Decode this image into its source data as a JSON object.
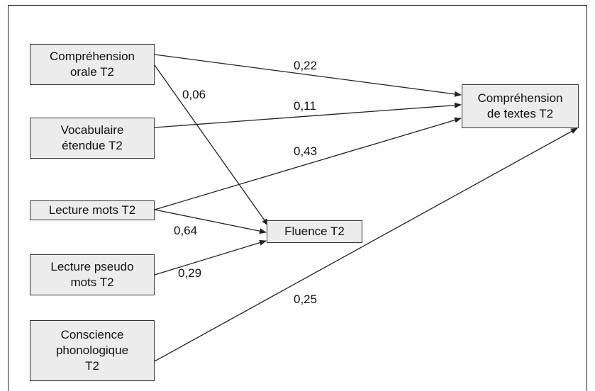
{
  "nodes": {
    "comprehension_orale": "Compréhension\norale T2",
    "vocabulaire": "Vocabulaire\nétendue T2",
    "lecture_mots": "Lecture mots T2",
    "lecture_pseudo": "Lecture pseudo\nmots T2",
    "conscience": "Conscience\nphonologique\nT2",
    "fluence": "Fluence T2",
    "comprehension_textes": "Compréhension\nde textes T2"
  },
  "paths": [
    {
      "from": "comprehension_orale",
      "to": "comprehension_textes",
      "coef": "0,22"
    },
    {
      "from": "comprehension_orale",
      "to": "fluence",
      "coef": "0,06"
    },
    {
      "from": "vocabulaire",
      "to": "comprehension_textes",
      "coef": "0,11"
    },
    {
      "from": "lecture_mots",
      "to": "comprehension_textes",
      "coef": "0,43"
    },
    {
      "from": "lecture_mots",
      "to": "fluence",
      "coef": "0,64"
    },
    {
      "from": "lecture_pseudo",
      "to": "fluence",
      "coef": "0,29"
    },
    {
      "from": "conscience",
      "to": "comprehension_textes",
      "coef": "0,25"
    }
  ],
  "colors": {
    "box_fill": "#ececec",
    "line": "#222222"
  }
}
